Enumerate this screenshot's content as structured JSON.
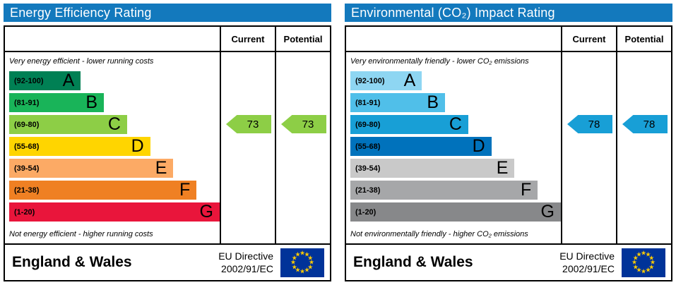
{
  "styles": {
    "title_bar_bg": "#1379bd",
    "title_text": "#ffffff",
    "flag_bg": "#003399",
    "flag_star": "#ffcc00"
  },
  "chart_data": [
    {
      "type": "bar",
      "title": "Energy Efficiency Rating",
      "columns": [
        "Current",
        "Potential"
      ],
      "top_note": "Very energy efficient - lower running costs",
      "bottom_note": "Not energy efficient - higher running costs",
      "bands": [
        {
          "letter": "A",
          "range": "(92-100)",
          "min": 92,
          "max": 100,
          "color": "#008054",
          "width_pct": 34
        },
        {
          "letter": "B",
          "range": "(81-91)",
          "min": 81,
          "max": 91,
          "color": "#19b459",
          "width_pct": 45
        },
        {
          "letter": "C",
          "range": "(69-80)",
          "min": 69,
          "max": 80,
          "color": "#8dce46",
          "width_pct": 56
        },
        {
          "letter": "D",
          "range": "(55-68)",
          "min": 55,
          "max": 68,
          "color": "#ffd500",
          "width_pct": 67
        },
        {
          "letter": "E",
          "range": "(39-54)",
          "min": 39,
          "max": 54,
          "color": "#fcaa65",
          "width_pct": 78
        },
        {
          "letter": "F",
          "range": "(21-38)",
          "min": 21,
          "max": 38,
          "color": "#ef8023",
          "width_pct": 89
        },
        {
          "letter": "G",
          "range": "(1-20)",
          "min": 1,
          "max": 20,
          "color": "#e9153b",
          "width_pct": 100
        }
      ],
      "current": {
        "value": 73,
        "band": "C",
        "color": "#8dce46"
      },
      "potential": {
        "value": 73,
        "band": "C",
        "color": "#8dce46"
      },
      "footer": {
        "region": "England & Wales",
        "directive": [
          "EU Directive",
          "2002/91/EC"
        ]
      }
    },
    {
      "type": "bar",
      "title": "Environmental (CO₂) Impact Rating",
      "columns": [
        "Current",
        "Potential"
      ],
      "top_note": "Very environmentally friendly - lower CO₂ emissions",
      "bottom_note": "Not environmentally friendly - higher CO₂ emissions",
      "bands": [
        {
          "letter": "A",
          "range": "(92-100)",
          "min": 92,
          "max": 100,
          "color": "#8ed6f2",
          "width_pct": 34
        },
        {
          "letter": "B",
          "range": "(81-91)",
          "min": 81,
          "max": 91,
          "color": "#50bfe9",
          "width_pct": 45
        },
        {
          "letter": "C",
          "range": "(69-80)",
          "min": 69,
          "max": 80,
          "color": "#189fd6",
          "width_pct": 56
        },
        {
          "letter": "D",
          "range": "(55-68)",
          "min": 55,
          "max": 68,
          "color": "#0072bc",
          "width_pct": 67
        },
        {
          "letter": "E",
          "range": "(39-54)",
          "min": 39,
          "max": 54,
          "color": "#c9c9c9",
          "width_pct": 78
        },
        {
          "letter": "F",
          "range": "(21-38)",
          "min": 21,
          "max": 38,
          "color": "#a6a7a9",
          "width_pct": 89
        },
        {
          "letter": "G",
          "range": "(1-20)",
          "min": 1,
          "max": 20,
          "color": "#87888a",
          "width_pct": 100
        }
      ],
      "current": {
        "value": 78,
        "band": "C",
        "color": "#189fd6"
      },
      "potential": {
        "value": 78,
        "band": "C",
        "color": "#189fd6"
      },
      "footer": {
        "region": "England & Wales",
        "directive": [
          "EU Directive",
          "2002/91/EC"
        ]
      }
    }
  ]
}
